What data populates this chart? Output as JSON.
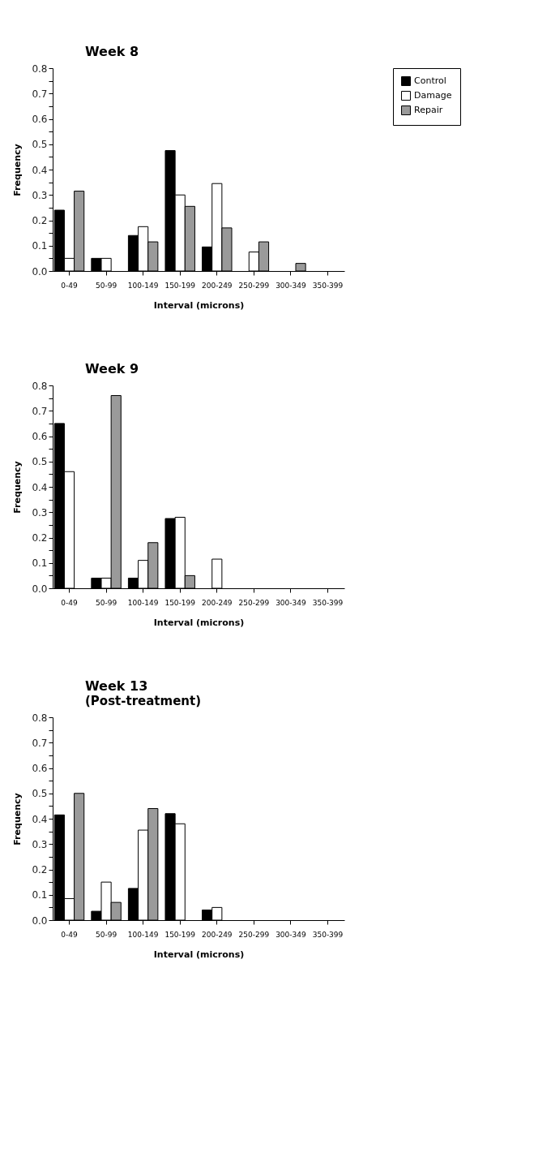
{
  "chart_data": [
    {
      "type": "bar",
      "title": "Week  8",
      "xlabel": "Interval   (microns)",
      "ylabel": "Frequency",
      "categories": [
        "0-49",
        "50-99",
        "100-149",
        "150-199",
        "200-249",
        "250-299",
        "300-349",
        "350-399"
      ],
      "series": [
        {
          "name": "Control",
          "color": "#000000",
          "values": [
            0.24,
            0.05,
            0.14,
            0.475,
            0.095,
            0,
            0,
            0
          ]
        },
        {
          "name": "Damage",
          "color": "#ffffff",
          "values": [
            0.05,
            0.05,
            0.175,
            0.3,
            0.345,
            0.075,
            0,
            0
          ]
        },
        {
          "name": "Repair",
          "color": "#9a9a9a",
          "values": [
            0.315,
            0,
            0.115,
            0.255,
            0.17,
            0.115,
            0.03,
            0
          ]
        }
      ],
      "ylim": [
        0,
        0.8
      ],
      "yticks": [
        {
          "value": 0,
          "label": "0.0"
        },
        {
          "value": 0.05,
          "label": null
        },
        0.1,
        {
          "value": 0.15,
          "label": null
        },
        0.2,
        {
          "value": 0.25,
          "label": null
        },
        0.3,
        {
          "value": 0.35,
          "label": null
        },
        0.4,
        {
          "value": 0.45,
          "label": null
        },
        0.5,
        {
          "value": 0.55,
          "label": null
        },
        0.6,
        {
          "value": 0.65,
          "label": null
        },
        0.7,
        {
          "value": 0.75,
          "label": null
        },
        0.8
      ],
      "legend": "right",
      "grid": false
    },
    {
      "type": "bar",
      "title": "Week  9",
      "xlabel": "Interval   (microns)",
      "ylabel": "Frequency",
      "categories": [
        "0-49",
        "50-99",
        "100-149",
        "150-199",
        "200-249",
        "250-299",
        "300-349",
        "350-399"
      ],
      "series": [
        {
          "color": "#000000",
          "values": [
            0.65,
            0.04,
            0.04,
            0.275,
            0,
            0,
            0,
            0
          ]
        },
        {
          "color": "#ffffff",
          "values": [
            0.46,
            0.04,
            0.11,
            0.28,
            0.115,
            0,
            0,
            0
          ]
        },
        {
          "color": "#9a9a9a",
          "values": [
            0,
            0.76,
            0.18,
            0.05,
            0,
            0,
            0,
            0
          ]
        }
      ],
      "ylim": [
        0,
        0.8
      ],
      "yticks": [
        {
          "value": 0,
          "label": "0.0"
        },
        {
          "value": 0.05,
          "label": null
        },
        0.1,
        {
          "value": 0.15,
          "label": null
        },
        0.2,
        {
          "value": 0.25,
          "label": null
        },
        0.3,
        {
          "value": 0.35,
          "label": null
        },
        0.4,
        {
          "value": 0.45,
          "label": null
        },
        0.5,
        {
          "value": 0.55,
          "label": null
        },
        0.6,
        {
          "value": 0.65,
          "label": null
        },
        0.7,
        {
          "value": 0.75,
          "label": null
        },
        0.8
      ],
      "legend": false,
      "grid": false
    },
    {
      "type": "bar",
      "title": "Week 13",
      "subtitle": "(Post-treatment)",
      "xlabel": "Interval   (microns)",
      "ylabel": "Frequency",
      "categories": [
        "0-49",
        "50-99",
        "100-149",
        "150-199",
        "200-249",
        "250-299",
        "300-349",
        "350-399"
      ],
      "series": [
        {
          "color": "#000000",
          "values": [
            0.415,
            0.035,
            0.125,
            0.42,
            0.04,
            0,
            0,
            0
          ]
        },
        {
          "color": "#ffffff",
          "values": [
            0.085,
            0.15,
            0.355,
            0.38,
            0.05,
            0,
            0,
            0
          ]
        },
        {
          "color": "#9a9a9a",
          "values": [
            0.5,
            0.07,
            0.44,
            0,
            0,
            0,
            0,
            0
          ]
        }
      ],
      "ylim": [
        0,
        0.8
      ],
      "yticks": [
        {
          "value": 0,
          "label": "0.0"
        },
        {
          "value": 0.05,
          "label": null
        },
        0.1,
        {
          "value": 0.15,
          "label": null
        },
        0.2,
        {
          "value": 0.25,
          "label": null
        },
        0.3,
        {
          "value": 0.35,
          "label": null
        },
        0.4,
        {
          "value": 0.45,
          "label": null
        },
        0.5,
        {
          "value": 0.55,
          "label": null
        },
        0.6,
        {
          "value": 0.65,
          "label": null
        },
        0.7,
        {
          "value": 0.75,
          "label": null
        },
        0.8
      ],
      "legend": false,
      "grid": false
    }
  ]
}
